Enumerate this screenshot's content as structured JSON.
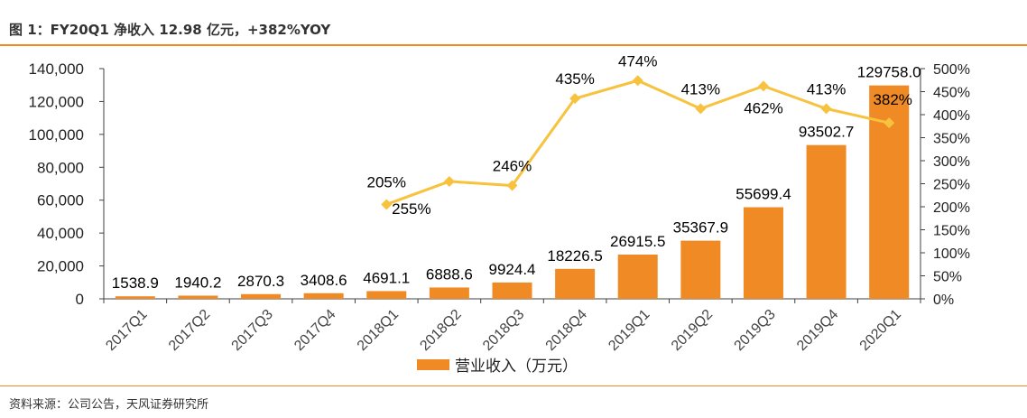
{
  "figure": {
    "title": "图 1：FY20Q1 净收入 12.98 亿元，+382%YOY",
    "source": "资料来源：公司公告，天风证券研究所"
  },
  "colors": {
    "bar": "#f08a24",
    "line": "#f7c23e",
    "accent_rule": "#f08a24",
    "axis": "#404040"
  },
  "chart_data": {
    "type": "bar",
    "title": "",
    "categories": [
      "2017Q1",
      "2017Q2",
      "2017Q3",
      "2017Q4",
      "2018Q1",
      "2018Q2",
      "2018Q3",
      "2018Q4",
      "2019Q1",
      "2019Q2",
      "2019Q3",
      "2019Q4",
      "2020Q1"
    ],
    "series": [
      {
        "name": "营业收入（万元）",
        "type": "bar",
        "axis": "left",
        "values": [
          1538.9,
          1940.2,
          2870.3,
          3408.6,
          4691.1,
          6888.6,
          9924.4,
          18226.5,
          26915.5,
          35367.9,
          55699.4,
          93502.7,
          129758.0
        ],
        "labels": [
          "1538.9",
          "1940.2",
          "2870.3",
          "3408.6",
          "4691.1",
          "6888.6",
          "9924.4",
          "18226.5",
          "26915.5",
          "35367.9",
          "55699.4",
          "93502.7",
          "129758.0"
        ]
      },
      {
        "name": "",
        "type": "line",
        "axis": "right",
        "values": [
          null,
          null,
          null,
          null,
          205,
          255,
          246,
          435,
          474,
          413,
          462,
          413,
          382
        ],
        "labels": [
          "",
          "",
          "",
          "",
          "205%",
          "255%",
          "246%",
          "435%",
          "474%",
          "413%",
          "462%",
          "413%",
          "382%"
        ]
      }
    ],
    "y_left": {
      "range": [
        0,
        140000
      ],
      "ticks": [
        0,
        20000,
        40000,
        60000,
        80000,
        100000,
        120000,
        140000
      ],
      "tick_labels": [
        "0",
        "20,000",
        "40,000",
        "60,000",
        "80,000",
        "100,000",
        "120,000",
        "140,000"
      ]
    },
    "y_right": {
      "range": [
        0,
        500
      ],
      "ticks": [
        0,
        50,
        100,
        150,
        200,
        250,
        300,
        350,
        400,
        450,
        500
      ],
      "tick_labels": [
        "0%",
        "50%",
        "100%",
        "150%",
        "200%",
        "250%",
        "300%",
        "350%",
        "400%",
        "450%",
        "500%"
      ]
    },
    "grid": false,
    "legend": {
      "position": "bottom",
      "entries": [
        "营业收入（万元）"
      ]
    }
  }
}
